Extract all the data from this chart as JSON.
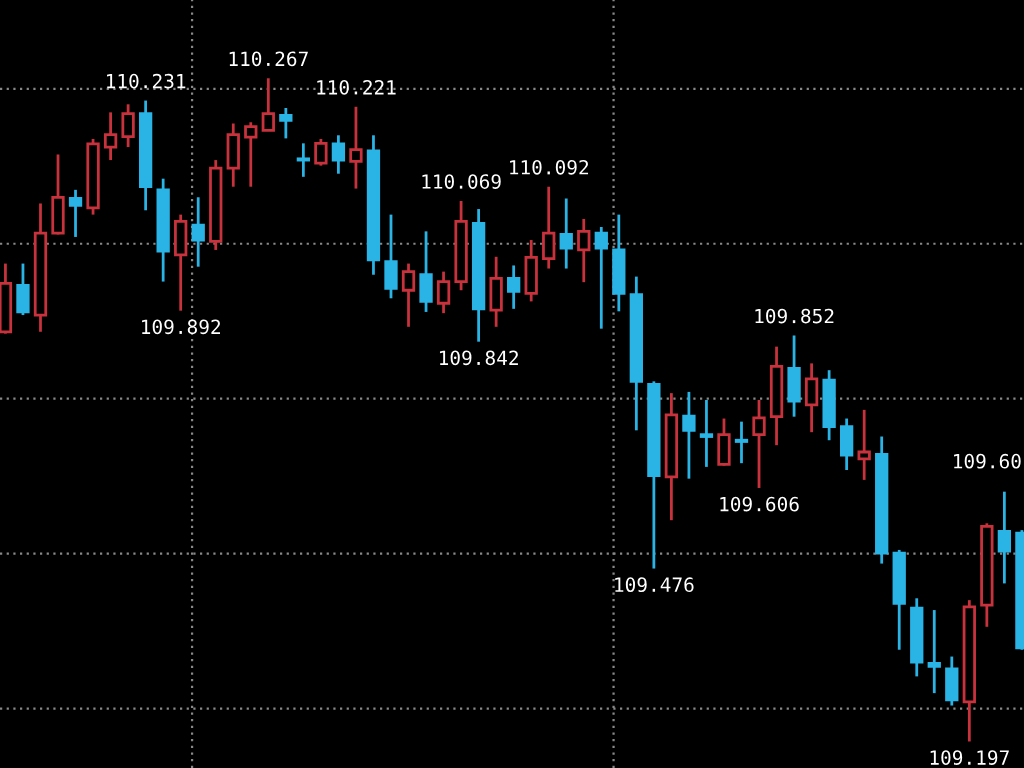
{
  "chart_data": {
    "type": "candlestick",
    "categories": [
      null,
      null,
      null,
      null,
      null,
      null,
      null,
      null,
      null,
      null,
      null,
      null,
      null,
      null,
      null,
      null,
      null,
      null,
      null,
      null,
      null,
      null,
      null,
      null,
      null,
      null,
      null,
      null,
      null,
      null,
      null,
      null,
      null,
      null,
      null,
      null,
      null,
      null,
      null,
      null,
      null,
      null,
      null,
      null,
      null,
      null,
      null,
      null,
      null,
      null,
      null,
      null,
      null,
      null,
      null,
      null,
      null,
      null,
      null
    ],
    "ohlc": [
      [
        109.858,
        109.968,
        109.855,
        109.936
      ],
      [
        109.933,
        109.968,
        109.885,
        109.89
      ],
      [
        109.885,
        110.065,
        109.858,
        110.017
      ],
      [
        110.017,
        110.144,
        110.015,
        110.075
      ],
      [
        110.073,
        110.087,
        110.011,
        110.062
      ],
      [
        110.058,
        110.169,
        110.047,
        110.161
      ],
      [
        110.156,
        110.212,
        110.135,
        110.176
      ],
      [
        110.173,
        110.225,
        110.156,
        110.21
      ],
      [
        110.21,
        110.231,
        110.054,
        110.092
      ],
      [
        110.087,
        110.105,
        109.939,
        109.988
      ],
      [
        109.982,
        110.047,
        109.892,
        110.036
      ],
      [
        110.03,
        110.075,
        109.963,
        110.006
      ],
      [
        110.004,
        110.135,
        109.99,
        110.122
      ],
      [
        110.122,
        110.194,
        110.092,
        110.176
      ],
      [
        110.172,
        110.196,
        110.092,
        110.189
      ],
      [
        110.183,
        110.267,
        110.182,
        110.21
      ],
      [
        110.207,
        110.219,
        110.17,
        110.199
      ],
      [
        110.137,
        110.162,
        110.108,
        110.135
      ],
      [
        110.13,
        110.169,
        110.126,
        110.162
      ],
      [
        110.161,
        110.175,
        110.113,
        110.135
      ],
      [
        110.133,
        110.221,
        110.089,
        110.152
      ],
      [
        110.15,
        110.175,
        109.95,
        109.974
      ],
      [
        109.971,
        110.047,
        109.912,
        109.928
      ],
      [
        109.925,
        109.968,
        109.866,
        109.955
      ],
      [
        109.95,
        110.02,
        109.89,
        109.907
      ],
      [
        109.904,
        109.955,
        109.888,
        109.939
      ],
      [
        109.939,
        110.069,
        109.925,
        110.036
      ],
      [
        110.033,
        110.056,
        109.842,
        109.895
      ],
      [
        109.893,
        109.979,
        109.866,
        109.944
      ],
      [
        109.944,
        109.965,
        109.895,
        109.923
      ],
      [
        109.92,
        110.006,
        109.907,
        109.978
      ],
      [
        109.976,
        110.092,
        109.96,
        110.017
      ],
      [
        110.015,
        110.073,
        109.96,
        109.993
      ],
      [
        109.99,
        110.04,
        109.938,
        110.02
      ],
      [
        110.017,
        110.027,
        109.863,
        109.993
      ],
      [
        109.99,
        110.047,
        109.891,
        109.92
      ],
      [
        109.918,
        109.947,
        109.699,
        109.778
      ],
      [
        109.773,
        109.778,
        109.476,
        109.626
      ],
      [
        109.624,
        109.759,
        109.554,
        109.724
      ],
      [
        109.722,
        109.761,
        109.621,
        109.699
      ],
      [
        109.692,
        109.748,
        109.64,
        109.689
      ],
      [
        109.644,
        109.718,
        109.642,
        109.692
      ],
      [
        109.683,
        109.713,
        109.646,
        109.681
      ],
      [
        109.692,
        109.748,
        109.606,
        109.719
      ],
      [
        109.721,
        109.834,
        109.675,
        109.802
      ],
      [
        109.799,
        109.852,
        109.721,
        109.746
      ],
      [
        109.74,
        109.807,
        109.696,
        109.782
      ],
      [
        109.78,
        109.796,
        109.683,
        109.705
      ],
      [
        109.705,
        109.718,
        109.635,
        109.659
      ],
      [
        109.653,
        109.732,
        109.619,
        109.664
      ],
      [
        109.66,
        109.689,
        109.484,
        109.501
      ],
      [
        109.501,
        109.506,
        109.345,
        109.42
      ],
      [
        109.412,
        109.428,
        109.302,
        109.325
      ],
      [
        109.323,
        109.409,
        109.275,
        109.318
      ],
      [
        109.314,
        109.334,
        109.255,
        109.264
      ],
      [
        109.261,
        109.425,
        109.197,
        109.414
      ],
      [
        109.417,
        109.549,
        109.382,
        109.544
      ],
      [
        109.536,
        109.6,
        109.452,
        109.504
      ],
      [
        109.533,
        109.538,
        109.345,
        109.348
      ]
    ],
    "colors": [
      "#c8323c",
      "#2ab4e6",
      "#c8323c",
      "#c8323c",
      "#2ab4e6",
      "#c8323c",
      "#c8323c",
      "#c8323c",
      "#2ab4e6",
      "#2ab4e6",
      "#c8323c",
      "#2ab4e6",
      "#c8323c",
      "#c8323c",
      "#c8323c",
      "#c8323c",
      "#2ab4e6",
      "#2ab4e6",
      "#c8323c",
      "#2ab4e6",
      "#c8323c",
      "#2ab4e6",
      "#2ab4e6",
      "#c8323c",
      "#2ab4e6",
      "#c8323c",
      "#c8323c",
      "#2ab4e6",
      "#c8323c",
      "#2ab4e6",
      "#c8323c",
      "#c8323c",
      "#2ab4e6",
      "#c8323c",
      "#2ab4e6",
      "#2ab4e6",
      "#2ab4e6",
      "#2ab4e6",
      "#c8323c",
      "#2ab4e6",
      "#2ab4e6",
      "#c8323c",
      "#2ab4e6",
      "#c8323c",
      "#c8323c",
      "#2ab4e6",
      "#c8323c",
      "#2ab4e6",
      "#2ab4e6",
      "#c8323c",
      "#2ab4e6",
      "#2ab4e6",
      "#2ab4e6",
      "#2ab4e6",
      "#2ab4e6",
      "#c8323c",
      "#c8323c",
      "#2ab4e6",
      "#2ab4e6"
    ],
    "annotations": [
      {
        "text": "110.231",
        "y": 110.231
      },
      {
        "text": "110.267",
        "y": 110.267
      },
      {
        "text": "110.221",
        "y": 110.221
      },
      {
        "text": "109.892",
        "y": 109.892
      },
      {
        "text": "110.069",
        "y": 110.069
      },
      {
        "text": "110.092",
        "y": 110.092
      },
      {
        "text": "109.842",
        "y": 109.842
      },
      {
        "text": "109.852",
        "y": 109.852
      },
      {
        "text": "109.606",
        "y": 109.606
      },
      {
        "text": "109.476",
        "y": 109.476
      },
      "109.60",
      {
        "text": "109.197",
        "y": 109.197
      }
    ],
    "yticks": [
      {
        "value": 110.25,
        "label": null
      },
      {
        "value": 110.0,
        "label": null
      },
      {
        "value": 109.75,
        "label": null
      },
      {
        "value": 109.5,
        "label": null
      },
      {
        "value": 109.25,
        "label": null
      }
    ],
    "grid": "y"
  }
}
